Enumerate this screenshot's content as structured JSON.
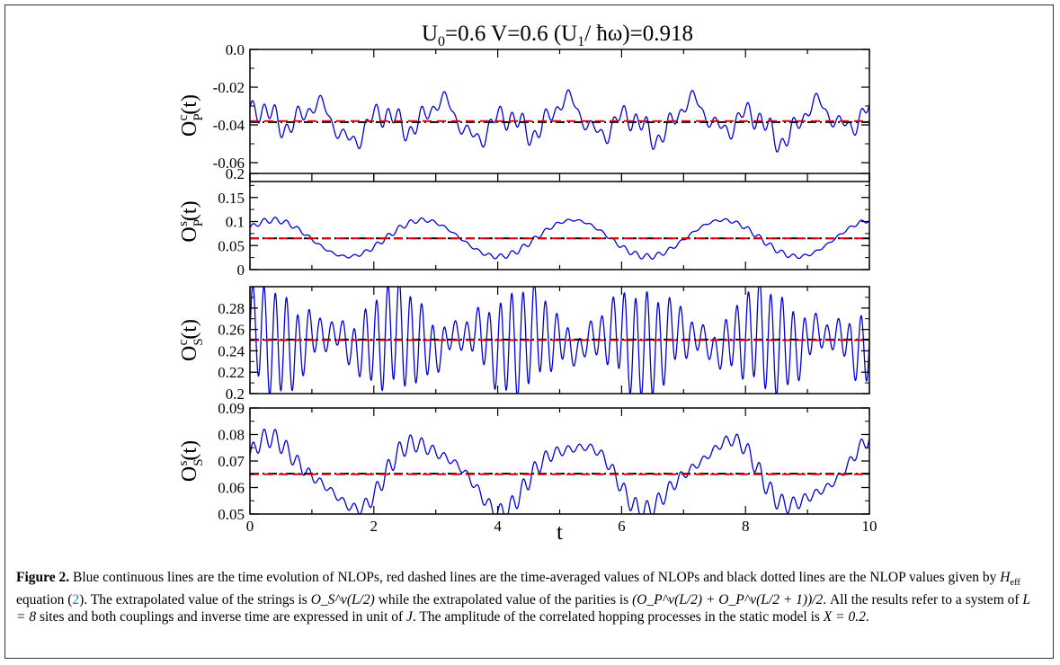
{
  "chart_data": {
    "type": "line",
    "title": "U0=0.6  V=0.6  (U1/ħω)=0.918",
    "title_parts": {
      "u0": "U",
      "u0_sub": "0",
      "u0_val": "=0.6  V=0.6  (U",
      "u1_sub": "1",
      "u1_rest": "/ ħω)=0.918"
    },
    "xlabel": "t",
    "xlim": [
      0,
      10
    ],
    "xticks": [
      "0",
      "2",
      "4",
      "6",
      "8",
      "10"
    ],
    "series_styles": {
      "time_evolution": {
        "color": "#0000dd",
        "style": "solid"
      },
      "time_average": {
        "color": "#e00000",
        "style": "dashed"
      },
      "heff": {
        "color": "#000000",
        "style": "dotted"
      }
    },
    "panels": [
      {
        "ylabel": "O_P^c(t)",
        "ylabel_parts": {
          "base": "O",
          "sub": "P",
          "sup": "c",
          "tail": "(t)"
        },
        "ylim": [
          -0.07,
          0.0
        ],
        "yticks": [
          0.0,
          -0.02,
          -0.04,
          -0.06
        ],
        "ytick_labels": [
          "0.0",
          "-0.02",
          "-0.04",
          "-0.06"
        ],
        "mean": -0.038,
        "heff_value": -0.0385,
        "slow_amp": 0.014,
        "slow_terms": [
          [
            1.0,
            0.9,
            0.5
          ],
          [
            2.2,
            -0.4,
            0.3
          ],
          [
            0.4,
            2.1,
            0.25
          ]
        ],
        "fast_amp": 0.0035,
        "fast_freq": 5.5,
        "fast_beat": 0.4
      },
      {
        "ylabel": "O_P^s(t)",
        "ylabel_parts": {
          "base": "O",
          "sub": "P",
          "sup": "s",
          "tail": "(t)"
        },
        "ylim": [
          0,
          0.2
        ],
        "yticks": [
          0,
          0.05,
          0.1,
          0.15,
          0.2
        ],
        "ytick_labels": [
          "0",
          "0.05",
          "0.1",
          "0.15",
          "0.2"
        ],
        "mean": 0.065,
        "heff_value": 0.065,
        "slow_amp": 0.038,
        "slow_terms": [
          [
            2.42,
            0.6,
            1.0
          ]
        ],
        "fast_amp": 0.004,
        "fast_freq": 5.5,
        "fast_beat": 0.5
      },
      {
        "ylabel": "O_S^c(t)",
        "ylabel_parts": {
          "base": "O",
          "sub": "S",
          "sup": "c",
          "tail": "(t)"
        },
        "ylim": [
          0.2,
          0.3
        ],
        "yticks": [
          0.2,
          0.22,
          0.24,
          0.26,
          0.28
        ],
        "ytick_labels": [
          "0.2",
          "0.22",
          "0.24",
          "0.26",
          "0.28"
        ],
        "mean": 0.25,
        "heff_value": 0.2505,
        "slow_amp": 0.012,
        "slow_terms": [
          [
            1.15,
            1.2,
            0.6
          ],
          [
            0.45,
            0.2,
            0.4
          ]
        ],
        "fast_amp": 0.03,
        "fast_freq": 5.5,
        "fast_beat": 0.6
      },
      {
        "ylabel": "O_S^s(t)",
        "ylabel_parts": {
          "base": "O",
          "sub": "S",
          "sup": "s",
          "tail": "(t)"
        },
        "ylim": [
          0.05,
          0.09
        ],
        "yticks": [
          0.05,
          0.06,
          0.07,
          0.08,
          0.09
        ],
        "ytick_labels": [
          "0.05",
          "0.06",
          "0.07",
          "0.08",
          "0.09"
        ],
        "mean": 0.065,
        "heff_value": 0.0652,
        "slow_amp": 0.012,
        "slow_terms": [
          [
            2.42,
            0.55,
            1.0
          ],
          [
            1.1,
            0.3,
            0.2
          ]
        ],
        "fast_amp": 0.0025,
        "fast_freq": 5.5,
        "fast_beat": 0.5
      }
    ]
  },
  "caption": {
    "label": "Figure 2.",
    "part1": " Blue continuous lines are the time evolution of NLOPs, red dashed lines are the time-averaged values of NLOPs and black dotted lines are the NLOP values given by ",
    "heff": "H",
    "heff_sub": "eff",
    "part2": " equation (",
    "eq_ref": "2",
    "part3": "). The extrapolated value of the strings is ",
    "strings_expr": "O_S^ν(L/2)",
    "part4": " while the extrapolated value of the parities is ",
    "parities_expr": "(O_P^ν(L/2) + O_P^ν(L/2 + 1))/2",
    "part5": ". All the results refer to a system of ",
    "system_size": "L = 8",
    "part6": " sites and both couplings and inverse time are expressed in unit of ",
    "unit": "J",
    "part7": ". The amplitude of the correlated hopping processes in the static model is ",
    "x_value": "X = 0.2",
    "part8": "."
  }
}
